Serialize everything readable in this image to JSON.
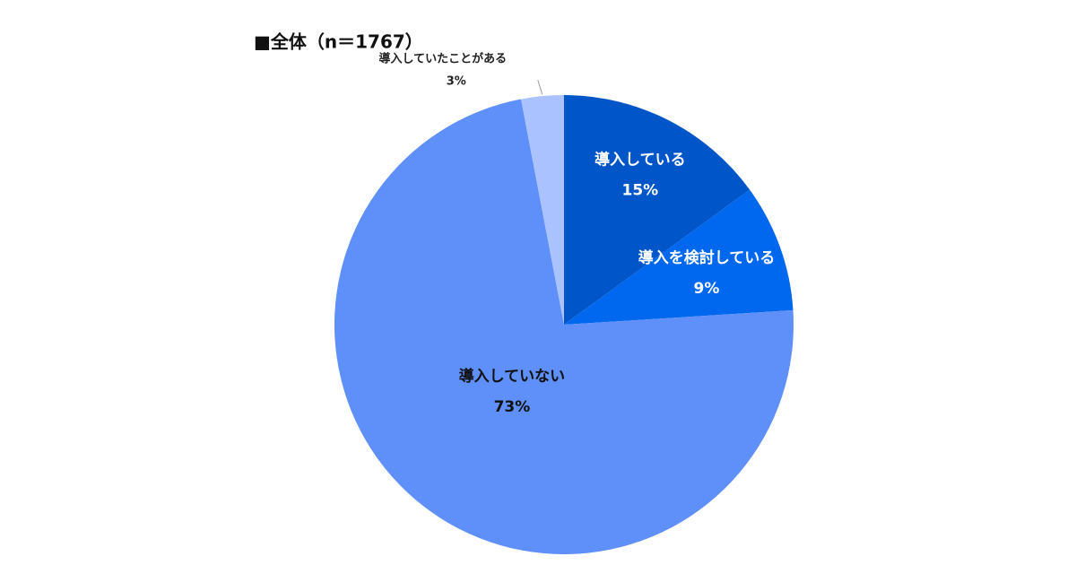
{
  "chart_data": {
    "type": "pie",
    "title": "■全体（n＝1767）",
    "categories": [
      "導入している",
      "導入を検討している",
      "導入していない",
      "導入していたことがある"
    ],
    "values": [
      15,
      9,
      73,
      3
    ],
    "value_labels": [
      "15%",
      "9%",
      "73%",
      "3%"
    ],
    "colors": [
      "#0055c8",
      "#0068ee",
      "#5f8ff9",
      "#aac2ff"
    ]
  }
}
